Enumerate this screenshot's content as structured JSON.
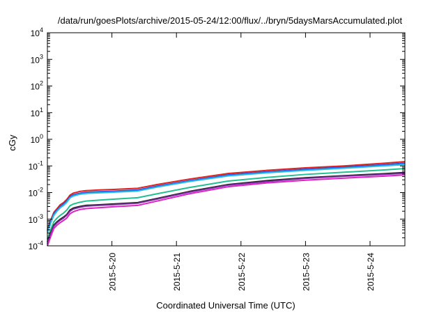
{
  "chart_data": {
    "type": "line",
    "title": "/data/run/goesPlots/archive/2015-05-24/12:00/flux/../bryn/5daysMarsAccumulated.plot",
    "xlabel": "Coordinated Universal Time (UTC)",
    "ylabel": "cGy",
    "y_scale": "log",
    "ylim": [
      0.0001,
      10000
    ],
    "xlim": [
      0,
      5.54
    ],
    "y_ticks": [
      {
        "value": 0.0001,
        "base": "10",
        "exp": "-4"
      },
      {
        "value": 0.001,
        "base": "10",
        "exp": "-3"
      },
      {
        "value": 0.01,
        "base": "10",
        "exp": "-2"
      },
      {
        "value": 0.1,
        "base": "10",
        "exp": "-1"
      },
      {
        "value": 1,
        "base": "10",
        "exp": "0"
      },
      {
        "value": 10,
        "base": "10",
        "exp": "1"
      },
      {
        "value": 100,
        "base": "10",
        "exp": "2"
      },
      {
        "value": 1000,
        "base": "10",
        "exp": "3"
      },
      {
        "value": 10000,
        "base": "10",
        "exp": "4"
      }
    ],
    "x_ticks": [
      {
        "value": 1,
        "label": "2015-5-20"
      },
      {
        "value": 2,
        "label": "2015-5-21"
      },
      {
        "value": 3,
        "label": "2015-5-22"
      },
      {
        "value": 4,
        "label": "2015-5-23"
      },
      {
        "value": 5,
        "label": "2015-5-24"
      }
    ],
    "grid": false,
    "series": [
      {
        "color": "#e0201b",
        "x": [
          0,
          0.05,
          0.1,
          0.15,
          0.2,
          0.25,
          0.3,
          0.35,
          0.4,
          0.45,
          0.5,
          0.6,
          0.8,
          1.0,
          1.4,
          1.7,
          2.2,
          2.8,
          3.4,
          4.0,
          4.6,
          5.2,
          5.54
        ],
        "y": [
          0.0004,
          0.0009,
          0.0018,
          0.0025,
          0.0035,
          0.0042,
          0.0055,
          0.008,
          0.0095,
          0.0102,
          0.011,
          0.0118,
          0.0125,
          0.013,
          0.0145,
          0.02,
          0.032,
          0.052,
          0.068,
          0.085,
          0.1,
          0.125,
          0.145
        ]
      },
      {
        "color": "#2a56e0",
        "x": [
          0,
          0.05,
          0.1,
          0.15,
          0.2,
          0.25,
          0.3,
          0.35,
          0.4,
          0.45,
          0.5,
          0.6,
          0.8,
          1.0,
          1.4,
          1.7,
          2.2,
          2.8,
          3.4,
          4.0,
          4.6,
          5.2,
          5.54
        ],
        "y": [
          0.00035,
          0.0008,
          0.0016,
          0.0022,
          0.003,
          0.0037,
          0.0048,
          0.007,
          0.0082,
          0.0088,
          0.0094,
          0.0102,
          0.0108,
          0.0112,
          0.0125,
          0.0175,
          0.028,
          0.046,
          0.06,
          0.075,
          0.09,
          0.11,
          0.127
        ]
      },
      {
        "color": "#2abfe0",
        "x": [
          0,
          0.05,
          0.1,
          0.15,
          0.2,
          0.25,
          0.3,
          0.35,
          0.4,
          0.45,
          0.5,
          0.6,
          0.8,
          1.0,
          1.4,
          1.7,
          2.2,
          2.8,
          3.4,
          4.0,
          4.6,
          5.2,
          5.54
        ],
        "y": [
          0.0003,
          0.0007,
          0.0014,
          0.002,
          0.0027,
          0.0033,
          0.0043,
          0.0063,
          0.0074,
          0.008,
          0.0086,
          0.0093,
          0.0098,
          0.0102,
          0.0114,
          0.016,
          0.026,
          0.042,
          0.055,
          0.068,
          0.082,
          0.1,
          0.112
        ]
      },
      {
        "color": "#20c090",
        "x": [
          0,
          0.05,
          0.1,
          0.15,
          0.2,
          0.25,
          0.3,
          0.35,
          0.4,
          0.45,
          0.5,
          0.6,
          0.8,
          1.0,
          1.4,
          1.7,
          2.2,
          2.8,
          3.4,
          4.0,
          4.6,
          5.2,
          5.54
        ],
        "y": [
          0.00018,
          0.0004,
          0.0008,
          0.0011,
          0.0014,
          0.0017,
          0.0022,
          0.0032,
          0.0037,
          0.004,
          0.0043,
          0.0048,
          0.0052,
          0.0056,
          0.0064,
          0.009,
          0.0155,
          0.027,
          0.037,
          0.048,
          0.058,
          0.07,
          0.08
        ]
      },
      {
        "color": "#1a1a1a",
        "x": [
          0,
          0.05,
          0.1,
          0.15,
          0.2,
          0.25,
          0.3,
          0.35,
          0.4,
          0.45,
          0.5,
          0.6,
          0.8,
          1.0,
          1.4,
          1.7,
          2.2,
          2.8,
          3.4,
          4.0,
          4.6,
          5.2,
          5.54
        ],
        "y": [
          0.00014,
          0.0003,
          0.0006,
          0.0008,
          0.001,
          0.0012,
          0.0015,
          0.0022,
          0.0026,
          0.0028,
          0.003,
          0.0033,
          0.0035,
          0.0037,
          0.0042,
          0.006,
          0.011,
          0.02,
          0.028,
          0.036,
          0.043,
          0.051,
          0.057
        ]
      },
      {
        "color": "#7b2f9e",
        "x": [
          0,
          0.05,
          0.1,
          0.15,
          0.2,
          0.25,
          0.3,
          0.35,
          0.4,
          0.45,
          0.5,
          0.6,
          0.8,
          1.0,
          1.4,
          1.7,
          2.2,
          2.8,
          3.4,
          4.0,
          4.6,
          5.2,
          5.54
        ],
        "y": [
          0.00012,
          0.00027,
          0.00055,
          0.00073,
          0.00092,
          0.0011,
          0.0014,
          0.002,
          0.0024,
          0.0026,
          0.0028,
          0.0031,
          0.0033,
          0.0035,
          0.004,
          0.0057,
          0.0104,
          0.019,
          0.026,
          0.034,
          0.041,
          0.048,
          0.053
        ]
      },
      {
        "color": "#e020c8",
        "x": [
          0,
          0.05,
          0.1,
          0.15,
          0.2,
          0.25,
          0.3,
          0.35,
          0.4,
          0.45,
          0.5,
          0.6,
          0.8,
          1.0,
          1.4,
          1.7,
          2.2,
          2.8,
          3.4,
          4.0,
          4.6,
          5.2,
          5.54
        ],
        "y": [
          0.0001,
          0.00022,
          0.00045,
          0.0006,
          0.00075,
          0.0009,
          0.0011,
          0.0016,
          0.0019,
          0.0021,
          0.0023,
          0.0025,
          0.0027,
          0.0029,
          0.0033,
          0.0048,
          0.009,
          0.0165,
          0.023,
          0.029,
          0.035,
          0.041,
          0.046
        ]
      }
    ]
  }
}
